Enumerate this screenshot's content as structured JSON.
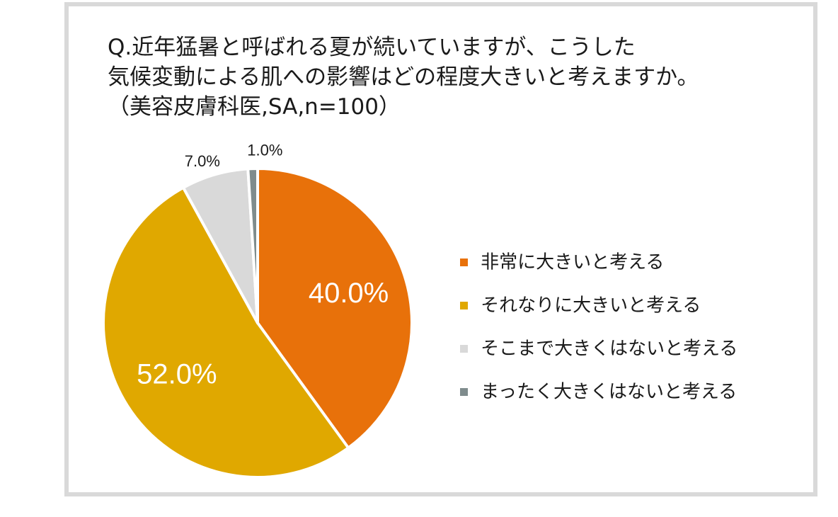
{
  "title": {
    "line1": "Q.近年猛暑と呼ばれる夏が続いていますが、こうした",
    "line2": "気候変動による肌への影響はどの程度大きいと考えますか。",
    "line3": "（美容皮膚科医,SA,n=100）"
  },
  "chart_data": {
    "type": "pie",
    "title": "Q.近年猛暑と呼ばれる夏が続いていますが、こうした気候変動による肌への影響はどの程度大きいと考えますか。（美容皮膚科医,SA,n=100）",
    "categories": [
      "非常に大きいと考える",
      "それなりに大きいと考える",
      "そこまで大きくはないと考える",
      "まったく大きくはないと考える"
    ],
    "values": [
      40.0,
      52.0,
      7.0,
      1.0
    ],
    "data_labels": [
      "40.0%",
      "52.0%",
      "7.0%",
      "1.0%"
    ],
    "colors": [
      "#e8710a",
      "#e0a800",
      "#d9d9d9",
      "#7f8c8d"
    ],
    "start_angle": "12 o'clock",
    "direction": "clockwise",
    "legend": "right"
  }
}
